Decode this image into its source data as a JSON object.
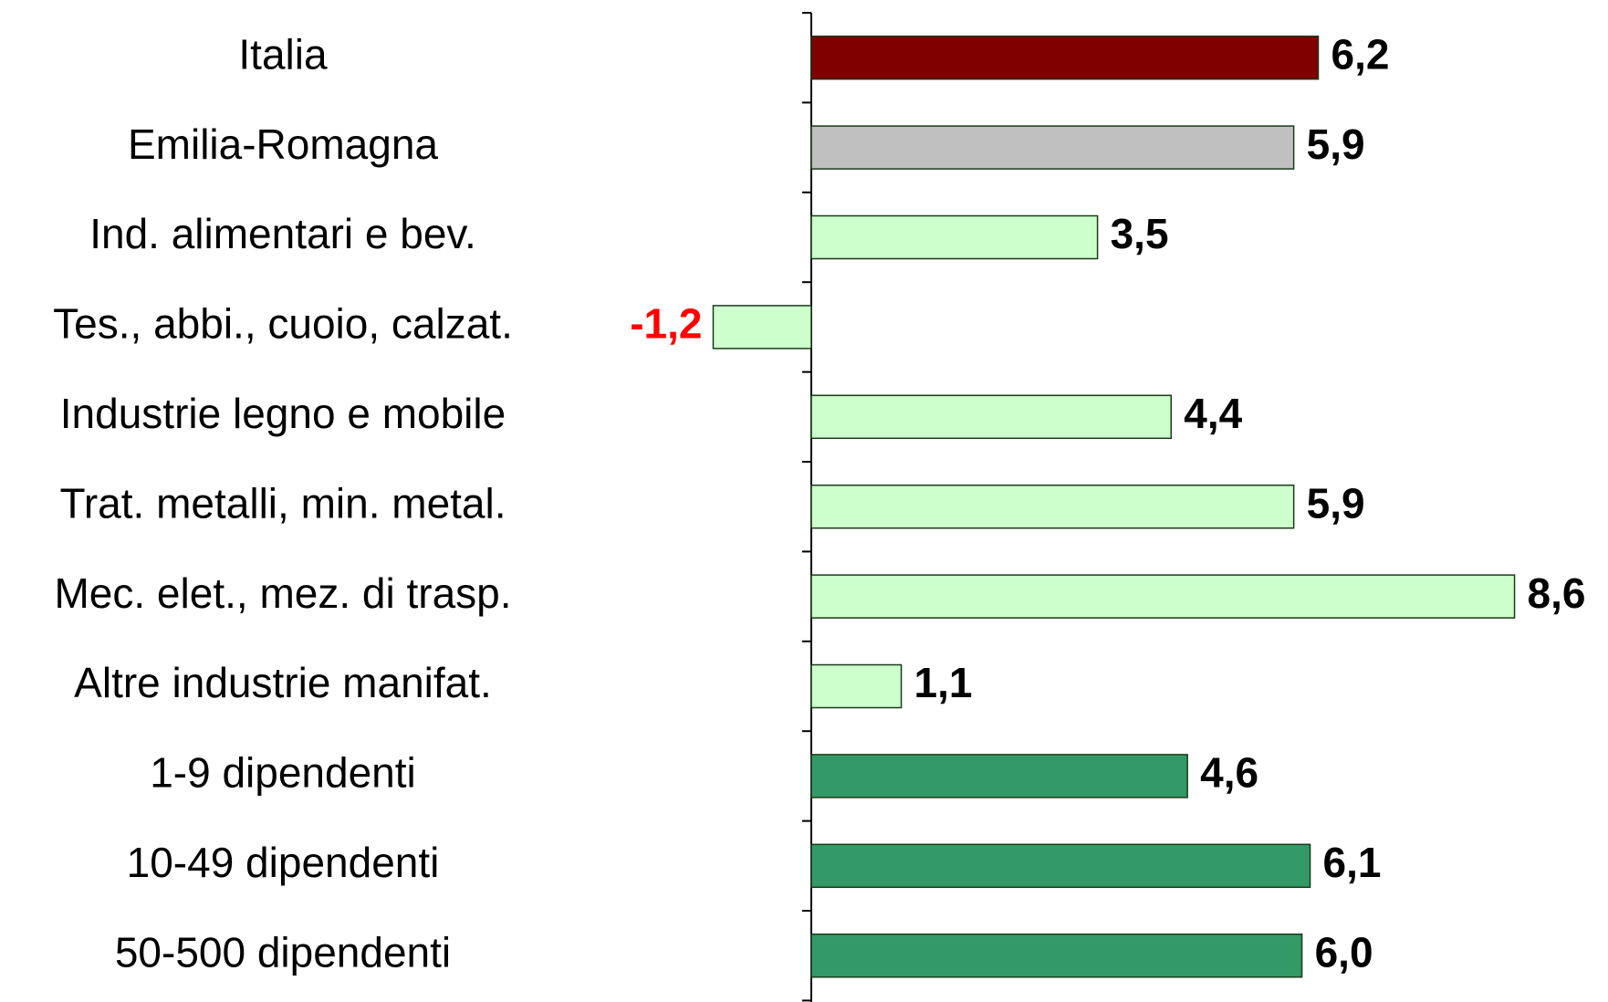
{
  "chart_data": {
    "type": "hbar",
    "categories": [
      "Italia",
      "Emilia-Romagna",
      "Ind. alimentari e bev.",
      "Tes., abbi., cuoio, calzat.",
      "Industrie legno e mobile",
      "Trat. metalli, min. metal.",
      "Mec. elet., mez. di trasp.",
      "Altre industrie manifat.",
      "1-9 dipendenti",
      "10-49 dipendenti",
      "50-500 dipendenti"
    ],
    "values": [
      6.2,
      5.9,
      3.5,
      -1.2,
      4.4,
      5.9,
      8.6,
      1.1,
      4.6,
      6.1,
      6.0
    ],
    "value_labels": [
      "6,2",
      "5,9",
      "3,5",
      "-1,2",
      "4,4",
      "5,9",
      "8,6",
      "1,1",
      "4,6",
      "6,1",
      "6,0"
    ],
    "colors": [
      "#800000",
      "#c0c0c0",
      "#ccffcc",
      "#ccffcc",
      "#ccffcc",
      "#ccffcc",
      "#ccffcc",
      "#ccffcc",
      "#339966",
      "#339966",
      "#339966"
    ],
    "negative_label_color": "#ff0000"
  }
}
